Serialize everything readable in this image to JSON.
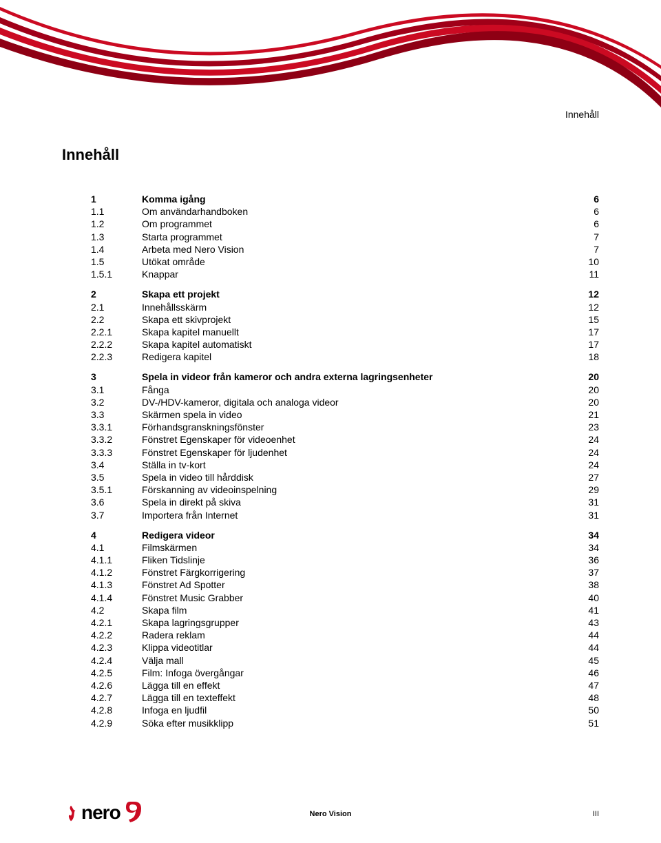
{
  "header_label": "Innehåll",
  "main_title": "Innehåll",
  "footer": {
    "center": "Nero Vision",
    "right": "III",
    "logo_text": "nero"
  },
  "colors": {
    "accent": "#cb0a22",
    "accent_dark": "#8e0014",
    "text": "#000000",
    "bg": "#ffffff"
  },
  "toc": [
    {
      "num": "1",
      "title": "Komma igång",
      "page": "6",
      "bold": true,
      "gap_before": false
    },
    {
      "num": "1.1",
      "title": "Om användarhandboken",
      "page": "6",
      "bold": false
    },
    {
      "num": "1.2",
      "title": "Om programmet",
      "page": "6",
      "bold": false
    },
    {
      "num": "1.3",
      "title": "Starta programmet",
      "page": "7",
      "bold": false
    },
    {
      "num": "1.4",
      "title": "Arbeta med Nero Vision",
      "page": "7",
      "bold": false
    },
    {
      "num": "1.5",
      "title": "Utökat område",
      "page": "10",
      "bold": false
    },
    {
      "num": "1.5.1",
      "title": "Knappar",
      "page": "11",
      "bold": false
    },
    {
      "num": "2",
      "title": "Skapa ett projekt",
      "page": "12",
      "bold": true,
      "gap_before": true
    },
    {
      "num": "2.1",
      "title": "Innehållsskärm",
      "page": "12",
      "bold": false
    },
    {
      "num": "2.2",
      "title": "Skapa ett skivprojekt",
      "page": "15",
      "bold": false
    },
    {
      "num": "2.2.1",
      "title": "Skapa kapitel manuellt",
      "page": "17",
      "bold": false
    },
    {
      "num": "2.2.2",
      "title": "Skapa kapitel automatiskt",
      "page": "17",
      "bold": false
    },
    {
      "num": "2.2.3",
      "title": "Redigera kapitel",
      "page": "18",
      "bold": false
    },
    {
      "num": "3",
      "title": "Spela in videor från kameror och andra externa lagringsenheter",
      "page": "20",
      "bold": true,
      "gap_before": true
    },
    {
      "num": "3.1",
      "title": "Fånga",
      "page": "20",
      "bold": false
    },
    {
      "num": "3.2",
      "title": "DV-/HDV-kameror, digitala och analoga videor",
      "page": "20",
      "bold": false
    },
    {
      "num": "3.3",
      "title": "Skärmen spela in video",
      "page": "21",
      "bold": false
    },
    {
      "num": "3.3.1",
      "title": "Förhandsgranskningsfönster",
      "page": "23",
      "bold": false
    },
    {
      "num": "3.3.2",
      "title": "Fönstret Egenskaper för videoenhet",
      "page": "24",
      "bold": false
    },
    {
      "num": "3.3.3",
      "title": "Fönstret Egenskaper för ljudenhet",
      "page": "24",
      "bold": false
    },
    {
      "num": "3.4",
      "title": "Ställa in tv-kort",
      "page": "24",
      "bold": false
    },
    {
      "num": "3.5",
      "title": "Spela in video till hårddisk",
      "page": "27",
      "bold": false
    },
    {
      "num": "3.5.1",
      "title": "Förskanning av videoinspelning",
      "page": "29",
      "bold": false
    },
    {
      "num": "3.6",
      "title": "Spela in direkt på skiva",
      "page": "31",
      "bold": false
    },
    {
      "num": "3.7",
      "title": "Importera från Internet",
      "page": "31",
      "bold": false
    },
    {
      "num": "4",
      "title": "Redigera videor",
      "page": "34",
      "bold": true,
      "gap_before": true
    },
    {
      "num": "4.1",
      "title": "Filmskärmen",
      "page": "34",
      "bold": false
    },
    {
      "num": "4.1.1",
      "title": "Fliken Tidslinje",
      "page": "36",
      "bold": false
    },
    {
      "num": "4.1.2",
      "title": "Fönstret Färgkorrigering",
      "page": "37",
      "bold": false
    },
    {
      "num": "4.1.3",
      "title": "Fönstret Ad Spotter",
      "page": "38",
      "bold": false
    },
    {
      "num": "4.1.4",
      "title": "Fönstret Music Grabber",
      "page": "40",
      "bold": false
    },
    {
      "num": "4.2",
      "title": "Skapa film",
      "page": "41",
      "bold": false
    },
    {
      "num": "4.2.1",
      "title": "Skapa lagringsgrupper",
      "page": "43",
      "bold": false
    },
    {
      "num": "4.2.2",
      "title": "Radera reklam",
      "page": "44",
      "bold": false
    },
    {
      "num": "4.2.3",
      "title": "Klippa videotitlar",
      "page": "44",
      "bold": false
    },
    {
      "num": "4.2.4",
      "title": "Välja mall",
      "page": "45",
      "bold": false
    },
    {
      "num": "4.2.5",
      "title": "Film: Infoga övergångar",
      "page": "46",
      "bold": false
    },
    {
      "num": "4.2.6",
      "title": "Lägga till en effekt",
      "page": "47",
      "bold": false
    },
    {
      "num": "4.2.7",
      "title": "Lägga till en texteffekt",
      "page": "48",
      "bold": false
    },
    {
      "num": "4.2.8",
      "title": "Infoga en ljudfil",
      "page": "50",
      "bold": false
    },
    {
      "num": "4.2.9",
      "title": "Söka efter musikklipp",
      "page": "51",
      "bold": false
    }
  ]
}
